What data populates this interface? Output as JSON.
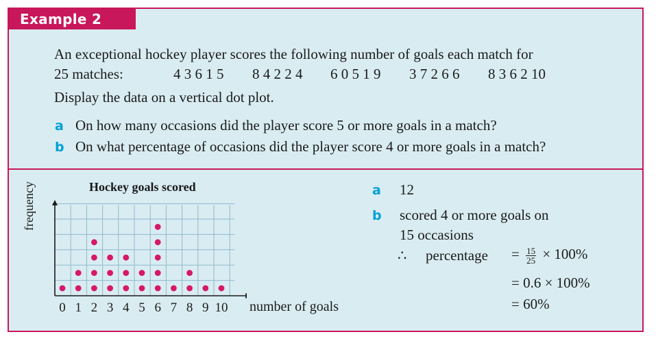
{
  "heading": "Example 2",
  "problem": {
    "line1": "An exceptional hockey player scores the following number of goals each match for",
    "line2_prefix": "25 matches:",
    "data_groups": [
      "4 3 6 1 5",
      "8 4 2 2 4",
      "6 0 5 1 9",
      "3 7 2 6 6",
      "8 3 6 2 10"
    ],
    "instruction": "Display the data on a vertical dot plot.",
    "questions": [
      {
        "label": "a",
        "text": "On how many occasions did the player score 5 or more goals in a match?"
      },
      {
        "label": "b",
        "text": "On what percentage of occasions did the player score 4 or more goals in a match?"
      }
    ]
  },
  "chart_data": {
    "type": "scatter",
    "title": "Hockey goals scored",
    "xlabel": "number of goals",
    "ylabel": "frequency",
    "categories": [
      "0",
      "1",
      "2",
      "3",
      "4",
      "5",
      "6",
      "7",
      "8",
      "9",
      "10"
    ],
    "values": [
      1,
      2,
      4,
      3,
      3,
      2,
      5,
      1,
      2,
      1,
      1
    ],
    "grid": true
  },
  "answers": {
    "a_label": "a",
    "a_value": "12",
    "b_label": "b",
    "b_line1": "scored 4 or more goals on",
    "b_line2": "15 occasions",
    "therefore": "∴",
    "percentage_word": "percentage",
    "eq": "=",
    "frac_num": "15",
    "frac_den": "25",
    "times_100": "× 100%",
    "step2": "= 0.6 × 100%",
    "step3": "= 60%"
  },
  "colors": {
    "accent": "#c8175a",
    "panel": "#d9ecf2",
    "dot": "#d6186a",
    "label_blue": "#00a0d6"
  }
}
